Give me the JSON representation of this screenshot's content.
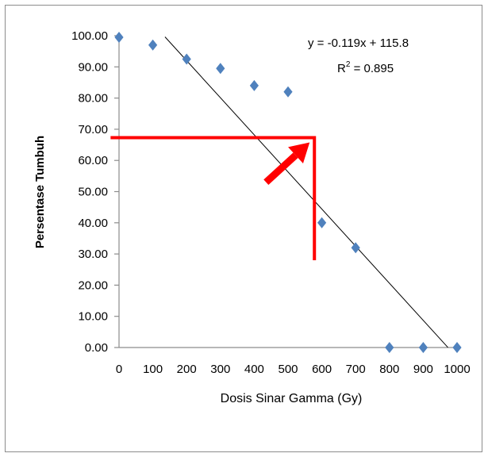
{
  "chart_data": {
    "type": "scatter",
    "xlabel": "Dosis Sinar Gamma  (Gy)",
    "ylabel": "Persentase Tumbuh",
    "xlim": [
      0,
      1000
    ],
    "ylim": [
      0,
      100
    ],
    "x_ticks": [
      "0",
      "100",
      "200",
      "300",
      "400",
      "500",
      "600",
      "700",
      "800",
      "900",
      "1000"
    ],
    "y_ticks": [
      "0.00",
      "10.00",
      "20.00",
      "30.00",
      "40.00",
      "50.00",
      "60.00",
      "70.00",
      "80.00",
      "90.00",
      "100.00"
    ],
    "x_tick_values": [
      0,
      100,
      200,
      300,
      400,
      500,
      600,
      700,
      800,
      900,
      1000
    ],
    "y_tick_values": [
      0,
      10,
      20,
      30,
      40,
      50,
      60,
      70,
      80,
      90,
      100
    ],
    "series": [
      {
        "marker": "diamond",
        "color": "#4f81bd",
        "x": [
          0,
          100,
          200,
          300,
          400,
          500,
          600,
          700,
          800,
          900,
          1000
        ],
        "y": [
          99.5,
          97.0,
          92.5,
          89.5,
          84.0,
          82.0,
          40.0,
          32.0,
          0.0,
          0.0,
          0.0
        ]
      }
    ],
    "trendline": {
      "slope": -0.119,
      "intercept": 115.8,
      "x_range": [
        136,
        973
      ],
      "color": "#000000",
      "equation": "y = -0.119x + 115.8",
      "r2_prefix": "R",
      "r2_sup": "2",
      "r2_suffix": " = 0.895"
    },
    "annotation": {
      "color": "#ff0000",
      "target_x": 578,
      "target_y": 67.3,
      "horizontal_from_x": -25,
      "vertical_to_y": 28,
      "arrow_from": [
        435,
        53
      ]
    },
    "grid": false,
    "legend": "none"
  }
}
